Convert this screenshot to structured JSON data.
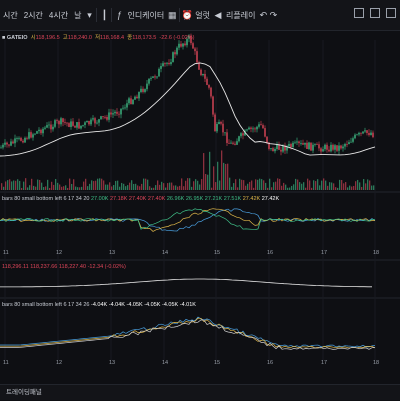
{
  "toolbar": {
    "intervals": [
      "시간",
      "2시간",
      "4시간"
    ],
    "day": "날",
    "indicators_label": "인디케이터",
    "alert_label": "얼럿",
    "replay_label": "리플레이"
  },
  "main_pane": {
    "pair_label": "GATEIO",
    "open_label": "시",
    "open": "118,196.5",
    "high_label": "고",
    "high": "118,240.0",
    "low_label": "저",
    "low": "118,168.4",
    "close_label": "종",
    "close": "118,173.5",
    "change": "-22.6 (-0.02%)"
  },
  "vol_pane": {
    "label": "bars 80 small bottom left 6 17 34 20",
    "values": [
      "27.00K",
      "27.18K",
      "27.40K",
      "27.40K",
      "26.96K",
      "26.95K",
      "27.21K",
      "27.51K",
      "27.42K",
      "27.42K"
    ]
  },
  "mid_pane": {
    "label": "118,296.11",
    "values": [
      "118,237.66",
      "118,227.40",
      "-12.34 (-0.02%)"
    ]
  },
  "lower_pane": {
    "label": "bars 80 small bottom left 6 17 34 26",
    "values": [
      "-4.04K",
      "-4.04K",
      "-4.05K",
      "-4.05K",
      "-4.05K",
      "-4.01K"
    ]
  },
  "x_ticks": [
    "11",
    "12",
    "13",
    "14",
    "15",
    "16",
    "17",
    "18"
  ],
  "footer": {
    "label": "트레이딩패널"
  },
  "colors": {
    "up": "#3fbf88",
    "down": "#e0465a",
    "ma": "#e8e8e8",
    "bg": "#0e0f13"
  }
}
